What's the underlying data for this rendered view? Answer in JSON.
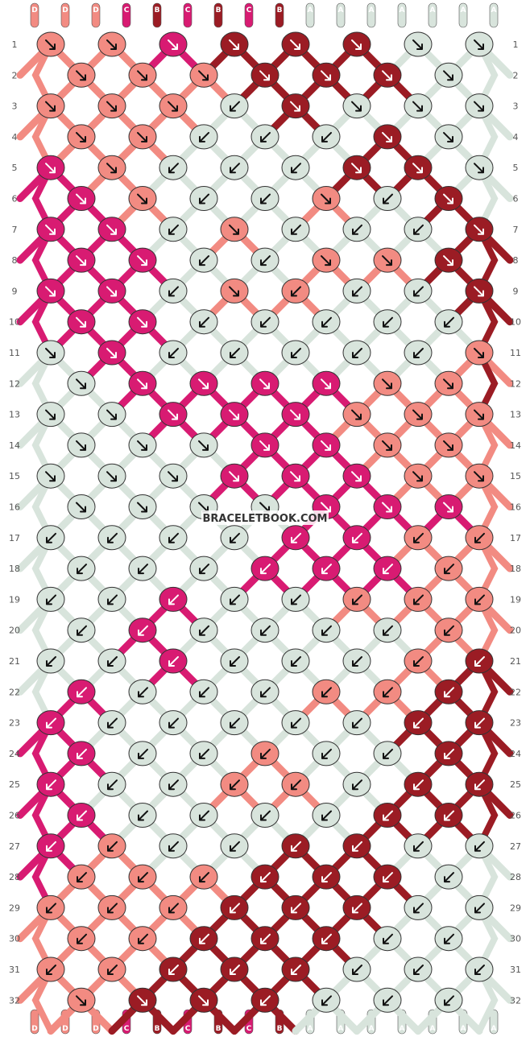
{
  "watermark": "BRACELETBOOK.COM",
  "colors": {
    "D": "#f28b82",
    "C": "#d81b72",
    "B": "#9b1c24",
    "A": "#d8e4dc"
  },
  "top_strands": [
    "D",
    "D",
    "D",
    "C",
    "B",
    "C",
    "B",
    "C",
    "B",
    "A",
    "A",
    "A",
    "A",
    "A",
    "A",
    "A"
  ],
  "bottom_strands": [
    "D",
    "D",
    "D",
    "C",
    "B",
    "C",
    "B",
    "C",
    "B",
    "A",
    "A",
    "A",
    "A",
    "A",
    "A",
    "A"
  ],
  "row_numbers": [
    "1",
    "2",
    "3",
    "4",
    "5",
    "6",
    "7",
    "8",
    "9",
    "10",
    "11",
    "12",
    "13",
    "14",
    "15",
    "16",
    "17",
    "18",
    "19",
    "20",
    "21",
    "22",
    "23",
    "24",
    "25",
    "26",
    "27",
    "28",
    "29",
    "30",
    "31",
    "32"
  ],
  "knot_rows": [
    "DDCBBBAA",
    "DDDBBBAA",
    "DDDABAAA",
    "DDAAABAA",
    "CDAAABBA",
    "CDAADABB",
    "CCADAAAB",
    "CCAADDBB",
    "CCADDAAB",
    "CCAAAAABB",
    "ACAAAAADB",
    "ACCCCDDD",
    "AACCCDDD",
    "AAACCDDD",
    "AAACCCDD",
    "AAAACCCD",
    "AAAACCDD",
    "AAACCCDD",
    "AACAADDD",
    "ACAAAADD",
    "AACAAADB",
    "CAAADDBB",
    "CAAAAABB",
    "CAADAABB",
    "CAADDABB",
    "CAAAABBA",
    "CDAABBAA",
    "DDDBBBAA",
    "DDDBBBAA",
    "DDBBBAAA",
    "DDBBBAAA",
    "DBBBAAA"
  ],
  "knot_dirs": [
    "RRRRRRRR",
    "RRRRRRRR",
    "RRRLRRRR",
    "RRLLLRRR",
    "RRLLLRRR",
    "RRLLRLRR",
    "RRLRLLLR",
    "RRLLRRRR",
    "RRLRLLLR",
    "RRLLLLLRR",
    "RRLLLLLRR",
    "RRRRRRRR",
    "RRRRRRRR",
    "RRRRRRRR",
    "RRRRRRRR",
    "RRRRRRRR",
    "LLLLLLLL",
    "LLLLLLLL",
    "LLLLLLLL",
    "LLLLLLLL",
    "LLLLLLLL",
    "LLLLLLLL",
    "LLLLLLLL",
    "LLLLLLLL",
    "LLLLLLLL",
    "LLLLLLLL",
    "LLLLLLLL",
    "LLLLLLLL",
    "LLLLLLLL",
    "LLLLLLLL",
    "LLLLLLLL",
    "RRRLLLL"
  ]
}
